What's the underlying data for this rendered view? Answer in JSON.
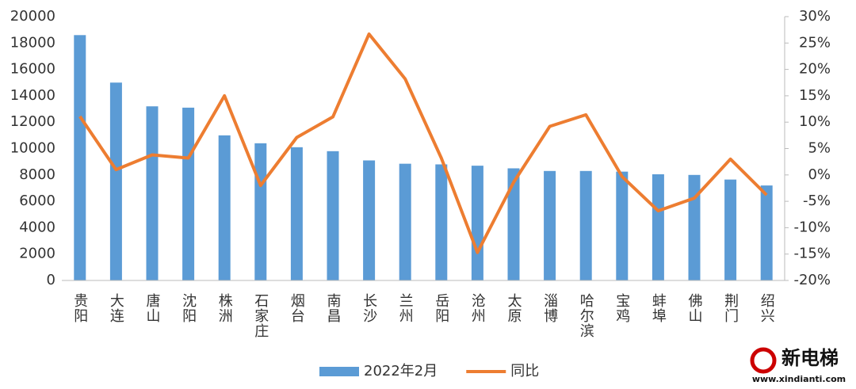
{
  "chart_data": {
    "type": "bar-line",
    "categories": [
      "贵阳",
      "大连",
      "唐山",
      "沈阳",
      "株洲",
      "石家庄",
      "烟台",
      "南昌",
      "长沙",
      "兰州",
      "岳阳",
      "沧州",
      "太原",
      "淄博",
      "哈尔滨",
      "宝鸡",
      "蚌埠",
      "佛山",
      "荆门",
      "绍兴"
    ],
    "series": [
      {
        "name": "2022年2月",
        "type": "bar",
        "color": "#5b9bd5",
        "values": [
          18600,
          15000,
          13200,
          13100,
          11000,
          10400,
          10100,
          9800,
          9100,
          8850,
          8800,
          8700,
          8500,
          8300,
          8300,
          8250,
          8050,
          8000,
          7650,
          7200
        ]
      },
      {
        "name": "同比",
        "type": "line",
        "axis": "y2",
        "color": "#ed7d31",
        "values": [
          11.1,
          1.0,
          3.8,
          3.2,
          15.0,
          -2.0,
          7.1,
          11.0,
          26.7,
          18.2,
          3.2,
          -14.7,
          -1.4,
          9.2,
          11.4,
          -0.3,
          -6.8,
          -4.4,
          3.0,
          -3.8
        ]
      }
    ],
    "ylim": [
      0,
      20000
    ],
    "yticks": [
      0,
      2000,
      4000,
      6000,
      8000,
      10000,
      12000,
      14000,
      16000,
      18000,
      20000
    ],
    "y2lim": [
      -20,
      30
    ],
    "y2ticks": [
      {
        "value": -20,
        "label": "-20%"
      },
      {
        "value": -15,
        "label": "-15%"
      },
      {
        "value": -10,
        "label": "-10%"
      },
      {
        "value": -5,
        "label": "-5%"
      },
      {
        "value": 0,
        "label": "0%"
      },
      {
        "value": 5,
        "label": "5%"
      },
      {
        "value": 10,
        "label": "10%"
      },
      {
        "value": 15,
        "label": "15%"
      },
      {
        "value": 20,
        "label": "20%"
      },
      {
        "value": 25,
        "label": "25%"
      },
      {
        "value": 30,
        "label": "30%"
      }
    ],
    "grid": false,
    "legend": "bottom"
  },
  "watermark": {
    "title": "新电梯",
    "url": "www.xindianti.com"
  }
}
